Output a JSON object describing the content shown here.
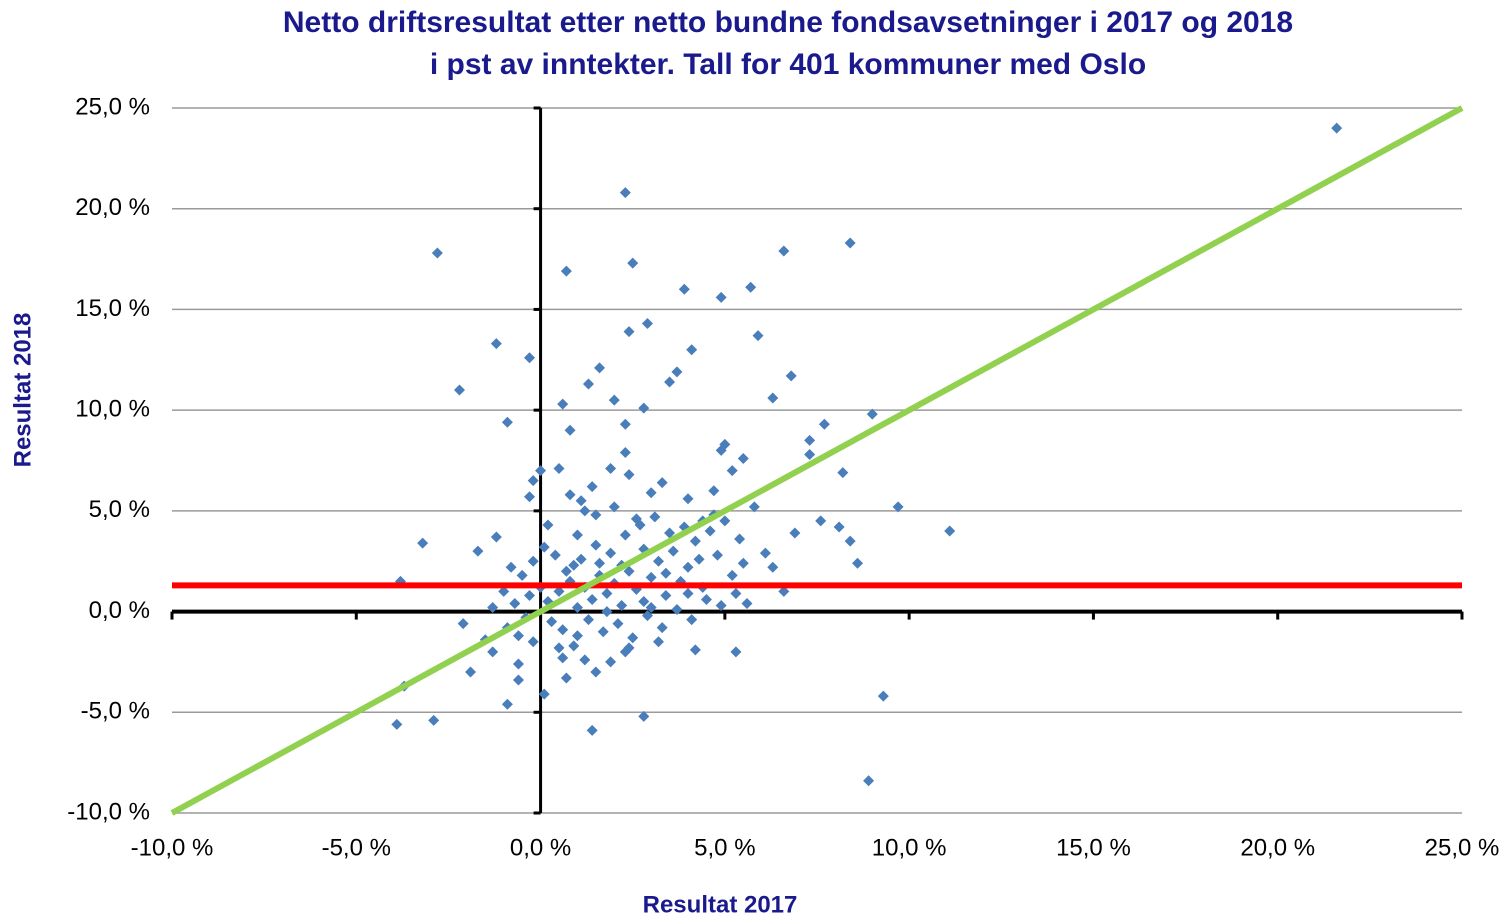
{
  "chart_data": {
    "type": "scatter",
    "title": "Netto driftsresultat etter netto bundne fondsavsetninger  i 2017 og 2018",
    "subtitle": "i pst av inntekter. Tall for 401 kommuner med Oslo",
    "x_label": "Resultat 2017",
    "y_label": "Resultat 2018",
    "color": "#4a7ebb",
    "grid": true,
    "xlim": [
      -10,
      25
    ],
    "ylim": [
      -10,
      25
    ],
    "xticks": [
      {
        "value": -10,
        "label": "-10,0 %"
      },
      {
        "value": -5,
        "label": "-5,0 %"
      },
      {
        "value": 0,
        "label": "0,0 %"
      },
      {
        "value": 5,
        "label": "5,0 %"
      },
      {
        "value": 10,
        "label": "10,0 %"
      },
      {
        "value": 15,
        "label": "15,0 %"
      },
      {
        "value": 20,
        "label": "20,0 %"
      },
      {
        "value": 25,
        "label": "25,0 %"
      }
    ],
    "yticks": [
      {
        "value": -10,
        "label": "-10,0 %"
      },
      {
        "value": -5,
        "label": "-5,0 %"
      },
      {
        "value": 0,
        "label": "0,0 %"
      },
      {
        "value": 5,
        "label": "5,0 %"
      },
      {
        "value": 10,
        "label": "10,0 %"
      },
      {
        "value": 15,
        "label": "15,0 %"
      },
      {
        "value": 20,
        "label": "20,0 %"
      },
      {
        "value": 25,
        "label": "25,0 %"
      }
    ],
    "lines": [
      {
        "color": "#ff0000",
        "x": [
          -10,
          25
        ],
        "y": [
          1.3,
          1.3
        ]
      },
      {
        "color": "#92d050",
        "x": [
          -10,
          25
        ],
        "y": [
          -10,
          25
        ]
      }
    ],
    "x": [
      21.6,
      2.3,
      -2.8,
      0.7,
      2.5,
      6.6,
      8.4,
      3.9,
      4.9,
      5.7,
      2.9,
      2.4,
      5.9,
      -1.2,
      -0.3,
      4.1,
      1.6,
      3.7,
      3.5,
      1.3,
      6.8,
      -2.2,
      2.0,
      0.6,
      6.3,
      2.8,
      9.0,
      -0.9,
      0.8,
      2.3,
      7.7,
      7.3,
      7.3,
      5.0,
      4.9,
      2.3,
      5.5,
      1.9,
      0.5,
      0.0,
      5.2,
      8.2,
      -0.2,
      3.3,
      1.4,
      4.7,
      -0.3,
      4.0,
      1.1,
      9.7,
      11.1,
      7.6,
      8.1,
      8.4,
      8.6,
      6.9,
      6.1,
      6.3,
      6.6,
      -3.2,
      -3.8,
      -1.7,
      -1.2,
      -2.1,
      -1.9,
      -1.5,
      -1.3,
      -0.9,
      -0.6,
      -0.6,
      0.1,
      -3.7,
      -3.9,
      -2.9,
      1.4,
      2.8,
      5.3,
      9.3,
      8.9,
      0.6,
      0.7,
      1.5,
      1.9,
      2.3,
      4.2,
      0.9,
      0.2,
      0.5,
      0.8,
      1.0,
      1.2,
      1.4,
      1.6,
      1.8,
      2.0,
      2.2,
      2.4,
      2.6,
      2.8,
      3.0,
      3.2,
      3.4,
      3.6,
      3.8,
      4.0,
      4.2,
      4.4,
      4.6,
      4.8,
      5.0,
      5.2,
      5.4,
      5.6,
      5.8,
      1.1,
      1.5,
      1.9,
      2.3,
      2.7,
      3.1,
      3.5,
      0.9,
      0.4,
      0.1,
      -0.2,
      -0.5,
      -0.8,
      -1.0,
      -0.7,
      -0.4,
      -0.9,
      -1.3,
      0.3,
      0.6,
      1.0,
      1.3,
      1.7,
      2.1,
      2.5,
      2.9,
      3.3,
      3.7,
      4.1,
      4.5,
      4.9,
      5.3,
      1.5,
      2.0,
      2.6,
      1.2,
      0.7,
      1.8,
      2.2,
      3.0,
      3.9,
      4.3,
      4.7,
      5.5,
      0.0,
      -0.3,
      1.6,
      2.8,
      3.4,
      4.0,
      1.0,
      0.5,
      1.2,
      2.4,
      3.2,
      -0.2,
      -0.6,
      0.2,
      0.8,
      2.4,
      3.0,
      4.4
    ],
    "y": [
      24.0,
      20.8,
      17.8,
      16.9,
      17.3,
      17.9,
      18.3,
      16.0,
      15.6,
      16.1,
      14.3,
      13.9,
      13.7,
      13.3,
      12.6,
      13.0,
      12.1,
      11.9,
      11.4,
      11.3,
      11.7,
      11.0,
      10.5,
      10.3,
      10.6,
      10.1,
      9.8,
      9.4,
      9.0,
      9.3,
      9.3,
      8.5,
      7.8,
      8.3,
      8.0,
      7.9,
      7.6,
      7.1,
      7.1,
      7.0,
      7.0,
      6.9,
      6.5,
      6.4,
      6.2,
      6.0,
      5.7,
      5.6,
      5.5,
      5.2,
      4.0,
      4.5,
      4.2,
      3.5,
      2.4,
      3.9,
      2.9,
      2.2,
      1.0,
      3.4,
      1.5,
      3.0,
      3.7,
      -0.6,
      -3.0,
      -1.4,
      -2.0,
      -4.6,
      -3.4,
      -2.6,
      -4.1,
      -3.7,
      -5.6,
      -5.4,
      -5.9,
      -5.2,
      -2.0,
      -4.2,
      -8.4,
      -2.3,
      -3.3,
      -3.0,
      -2.5,
      -2.0,
      -1.9,
      -1.7,
      0.5,
      1.0,
      1.5,
      0.2,
      1.2,
      0.6,
      1.8,
      0.9,
      1.4,
      0.3,
      2.0,
      1.1,
      0.5,
      1.7,
      2.5,
      0.8,
      3.0,
      1.5,
      2.2,
      3.5,
      1.2,
      4.0,
      2.8,
      4.5,
      1.8,
      3.6,
      0.4,
      5.2,
      2.6,
      3.3,
      2.9,
      3.8,
      4.3,
      4.7,
      3.9,
      2.3,
      2.8,
      3.2,
      2.5,
      1.8,
      2.2,
      1.0,
      0.4,
      -0.3,
      -0.8,
      0.2,
      -0.5,
      -0.9,
      -1.2,
      -0.4,
      -1.0,
      -0.6,
      -1.3,
      -0.2,
      -0.8,
      0.1,
      -0.4,
      0.6,
      0.3,
      0.9,
      4.8,
      5.2,
      4.6,
      5.0,
      2.0,
      0.0,
      2.3,
      0.2,
      4.2,
      2.6,
      4.8,
      2.4,
      1.2,
      0.8,
      2.4,
      3.1,
      1.9,
      0.9,
      3.8,
      -1.8,
      -2.4,
      -1.8,
      -1.5,
      -1.5,
      -1.2,
      4.3,
      5.8,
      6.8,
      5.9,
      4.5
    ]
  }
}
